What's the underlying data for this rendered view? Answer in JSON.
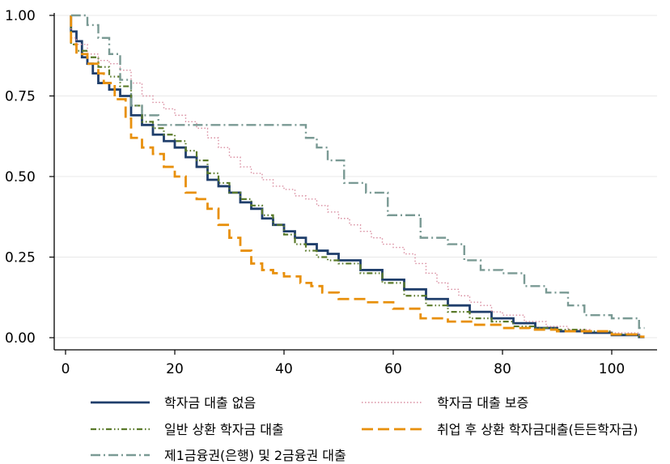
{
  "chart_data": {
    "type": "line",
    "title": "",
    "xlabel": "",
    "ylabel": "",
    "xlim": [
      0,
      106
    ],
    "ylim": [
      0,
      1
    ],
    "grid": true,
    "legend_position": "bottom",
    "x_ticks": [
      "0",
      "20",
      "40",
      "60",
      "80",
      "100"
    ],
    "y_ticks": [
      "0.00",
      "0.25",
      "0.50",
      "0.75",
      "1.00"
    ],
    "series": [
      {
        "name": "학자금 대출 없음",
        "color": "#1f3e6b",
        "dash": "solid",
        "x": [
          1,
          2,
          3,
          4,
          5,
          6,
          8,
          10,
          12,
          14,
          16,
          18,
          20,
          22,
          24,
          26,
          28,
          30,
          32,
          34,
          36,
          38,
          40,
          42,
          44,
          46,
          48,
          50,
          54,
          58,
          62,
          66,
          70,
          74,
          78,
          82,
          86,
          90,
          95,
          100,
          105
        ],
        "y": [
          0.95,
          0.92,
          0.87,
          0.85,
          0.82,
          0.79,
          0.77,
          0.75,
          0.69,
          0.66,
          0.63,
          0.61,
          0.59,
          0.56,
          0.53,
          0.49,
          0.47,
          0.45,
          0.42,
          0.4,
          0.37,
          0.35,
          0.33,
          0.31,
          0.29,
          0.27,
          0.26,
          0.24,
          0.21,
          0.18,
          0.15,
          0.12,
          0.1,
          0.08,
          0.06,
          0.045,
          0.03,
          0.02,
          0.015,
          0.008,
          0.002
        ]
      },
      {
        "name": "학자금 대출 보증",
        "color": "#d98da0",
        "dash": "dotted",
        "x": [
          1,
          2,
          4,
          6,
          8,
          10,
          12,
          14,
          16,
          18,
          20,
          22,
          24,
          26,
          28,
          30,
          32,
          34,
          36,
          38,
          40,
          42,
          44,
          46,
          48,
          50,
          52,
          54,
          56,
          58,
          60,
          62,
          64,
          66,
          68,
          70,
          72,
          74,
          76,
          78,
          80,
          84,
          88,
          92,
          96,
          100,
          105
        ],
        "y": [
          0.93,
          0.91,
          0.88,
          0.86,
          0.85,
          0.83,
          0.79,
          0.75,
          0.73,
          0.71,
          0.69,
          0.67,
          0.65,
          0.62,
          0.59,
          0.56,
          0.53,
          0.51,
          0.49,
          0.47,
          0.46,
          0.44,
          0.43,
          0.41,
          0.39,
          0.37,
          0.35,
          0.33,
          0.31,
          0.29,
          0.28,
          0.26,
          0.23,
          0.2,
          0.17,
          0.15,
          0.13,
          0.11,
          0.1,
          0.08,
          0.07,
          0.05,
          0.035,
          0.025,
          0.02,
          0.015,
          0.005
        ]
      },
      {
        "name": "일반 상환 학자금 대출",
        "color": "#5a7a2a",
        "dash": "dash-dot-dot",
        "x": [
          1,
          2,
          4,
          6,
          8,
          10,
          12,
          14,
          16,
          18,
          20,
          22,
          24,
          26,
          28,
          30,
          32,
          34,
          36,
          38,
          40,
          42,
          44,
          46,
          48,
          50,
          54,
          58,
          62,
          66,
          70,
          74,
          78,
          82,
          86,
          90,
          95,
          100,
          105
        ],
        "y": [
          0.91,
          0.89,
          0.87,
          0.84,
          0.81,
          0.78,
          0.72,
          0.67,
          0.65,
          0.63,
          0.61,
          0.58,
          0.55,
          0.51,
          0.48,
          0.45,
          0.43,
          0.41,
          0.38,
          0.35,
          0.32,
          0.29,
          0.27,
          0.25,
          0.24,
          0.23,
          0.2,
          0.17,
          0.13,
          0.1,
          0.08,
          0.06,
          0.05,
          0.035,
          0.03,
          0.025,
          0.02,
          0.01,
          0.003
        ]
      },
      {
        "name": "취업 후 상환 학자금대출(든든학자금)",
        "color": "#e8900c",
        "dash": "long-dash",
        "x": [
          1,
          2,
          4,
          6,
          7,
          9,
          11,
          12,
          14,
          16,
          18,
          20,
          22,
          24,
          26,
          28,
          30,
          32,
          34,
          36,
          38,
          40,
          43,
          45,
          47,
          50,
          55,
          60,
          65,
          70,
          75,
          80,
          85,
          90,
          100,
          105
        ],
        "y": [
          0.91,
          0.88,
          0.85,
          0.82,
          0.79,
          0.74,
          0.68,
          0.62,
          0.59,
          0.57,
          0.53,
          0.5,
          0.45,
          0.43,
          0.4,
          0.35,
          0.31,
          0.27,
          0.23,
          0.21,
          0.2,
          0.19,
          0.17,
          0.16,
          0.14,
          0.12,
          0.11,
          0.09,
          0.06,
          0.05,
          0.04,
          0.03,
          0.025,
          0.02,
          0.01,
          0.003
        ]
      },
      {
        "name": "제1금융권(은행) 및 2금융권 대출",
        "color": "#7a9a94",
        "dash": "dash-dot",
        "x": [
          1,
          4,
          6,
          8,
          10,
          12,
          14,
          17,
          20,
          25,
          30,
          35,
          40,
          44,
          46,
          48,
          51,
          55,
          59,
          62,
          65,
          70,
          73,
          76,
          80,
          84,
          88,
          92,
          95,
          100,
          105
        ],
        "y": [
          1.0,
          0.97,
          0.93,
          0.88,
          0.8,
          0.72,
          0.69,
          0.66,
          0.66,
          0.66,
          0.66,
          0.66,
          0.66,
          0.62,
          0.59,
          0.55,
          0.48,
          0.45,
          0.38,
          0.38,
          0.31,
          0.29,
          0.24,
          0.21,
          0.2,
          0.16,
          0.14,
          0.1,
          0.07,
          0.06,
          0.03
        ]
      }
    ]
  }
}
